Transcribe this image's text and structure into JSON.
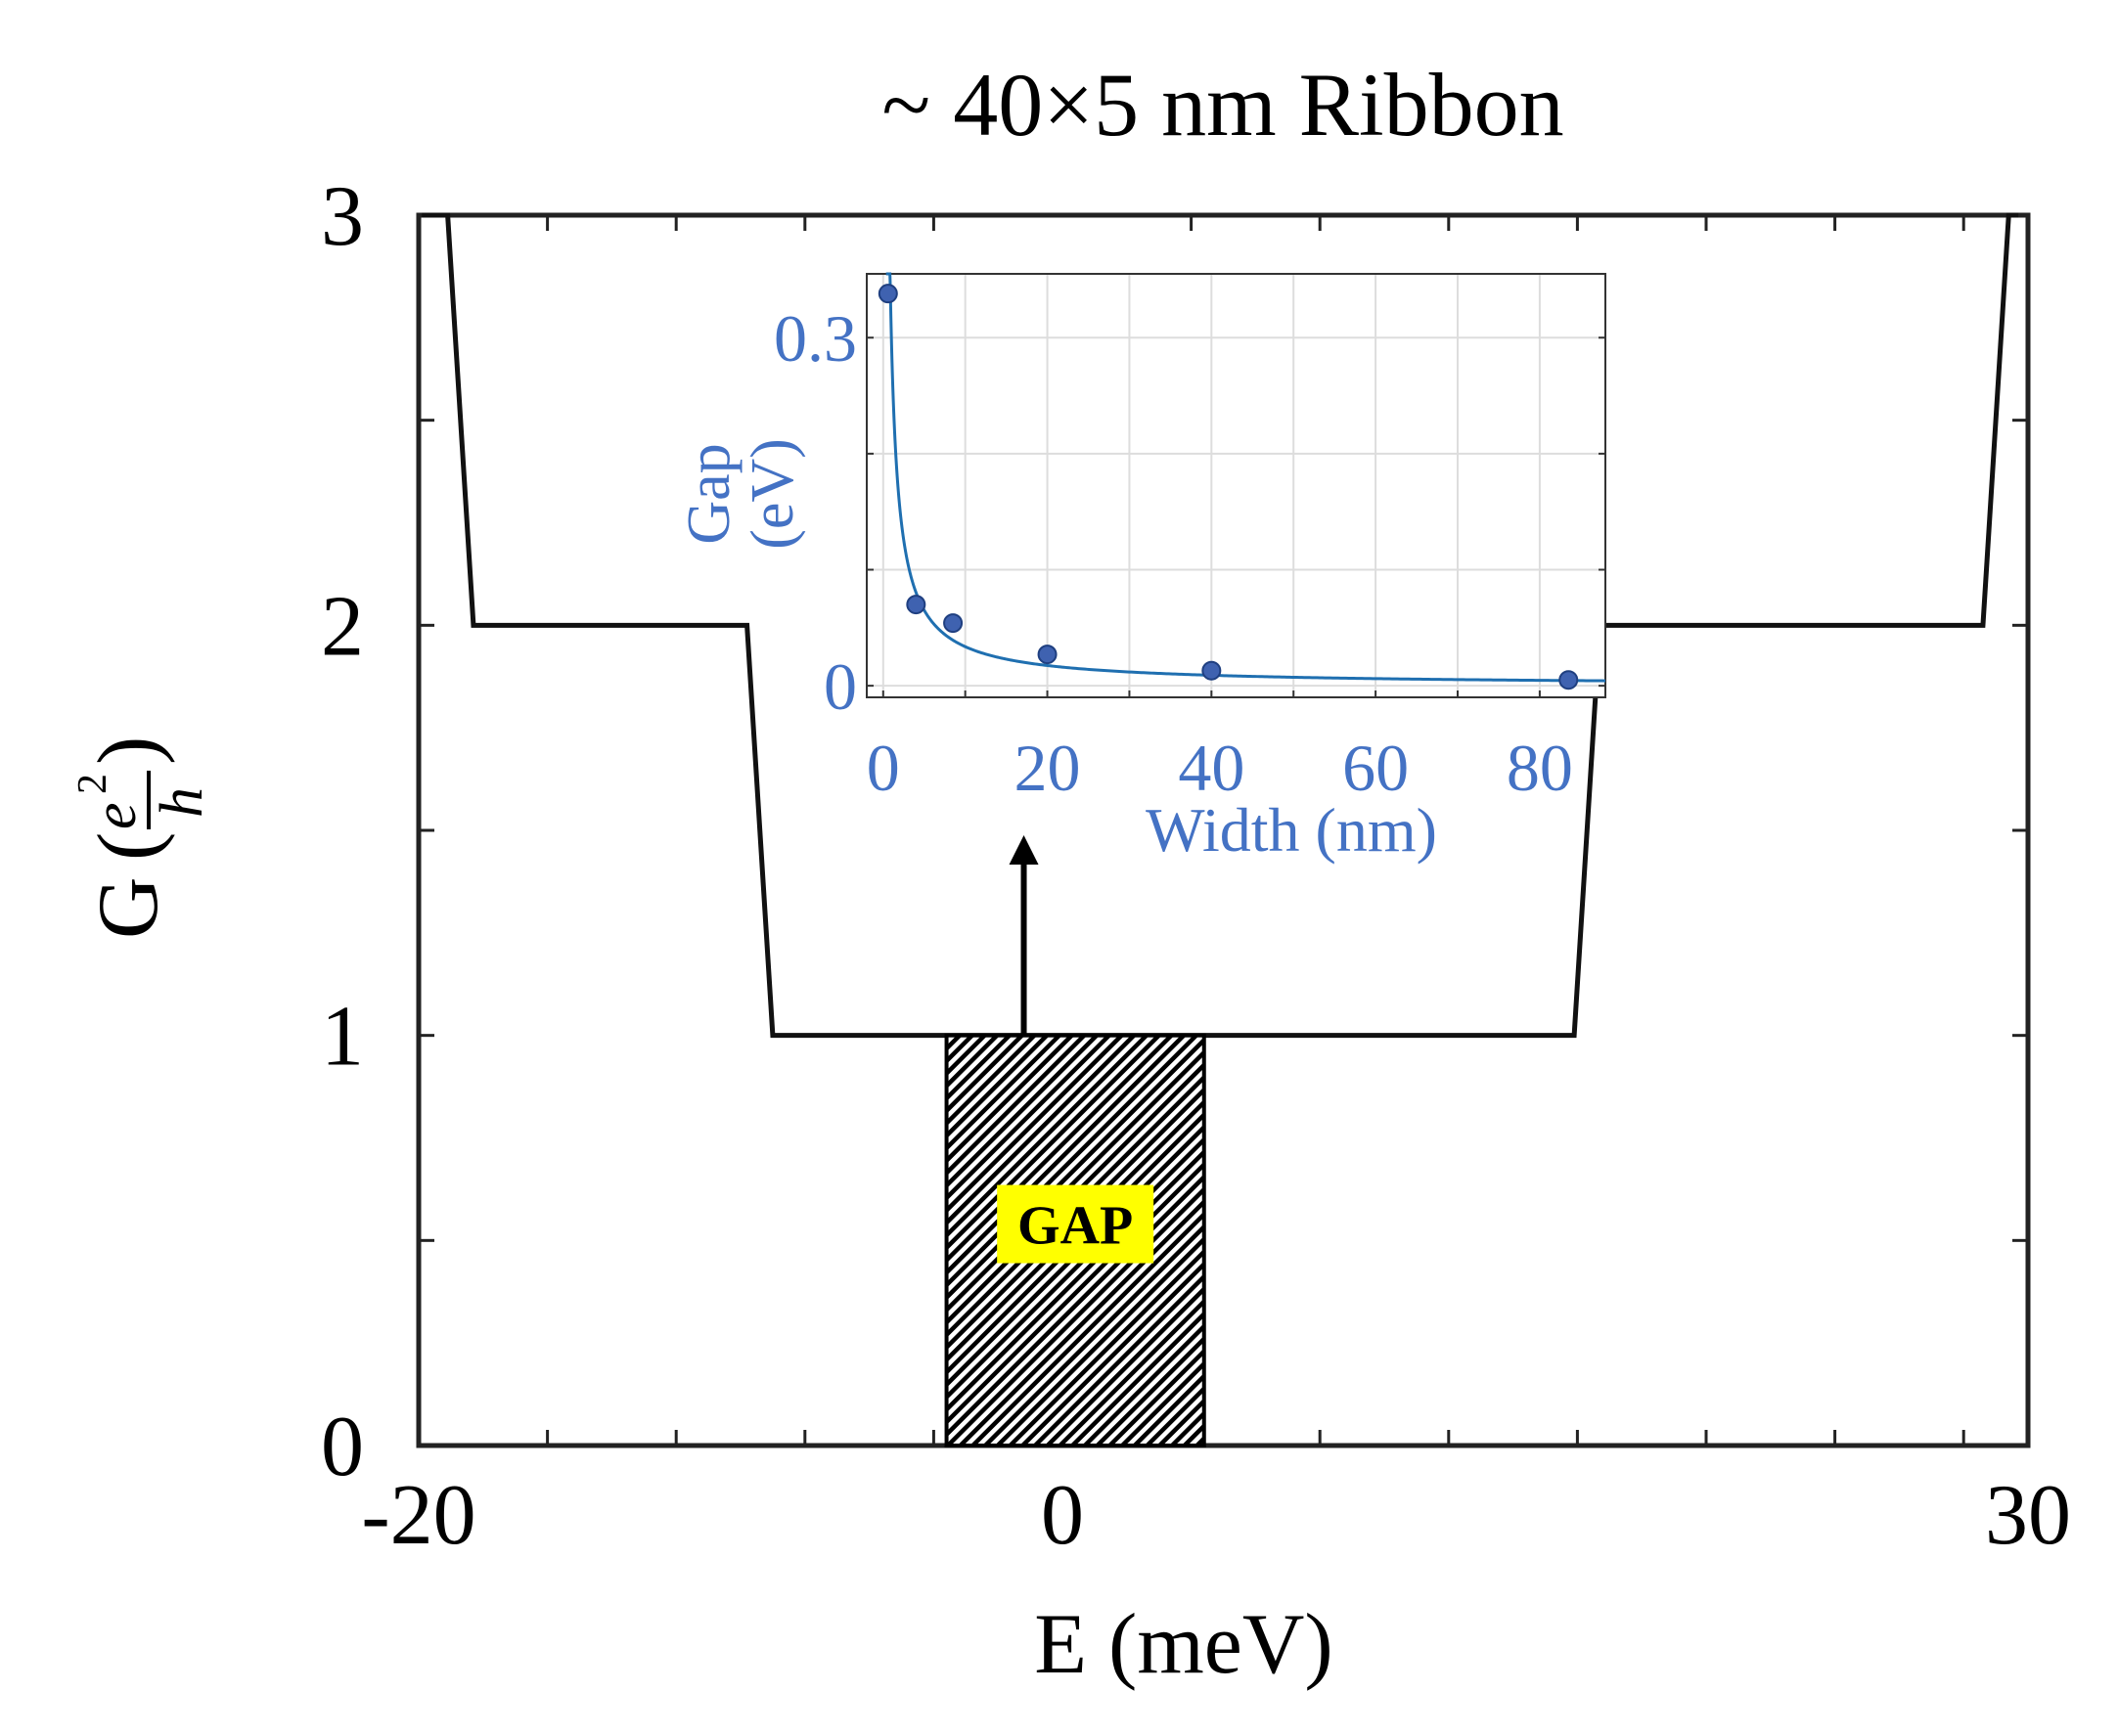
{
  "chart_data": [
    {
      "type": "line",
      "title": "~ 40×5 nm Ribbon",
      "xlabel": "E (meV)",
      "ylabel": "G",
      "ylabel_unit": {
        "numerator": "e",
        "exponent": "2",
        "denominator": "h"
      },
      "xlim": [
        -20,
        30
      ],
      "ylim": [
        0,
        3
      ],
      "x_tick_labels": [
        "-20",
        "0",
        "30"
      ],
      "x_tick_values": [
        -20,
        0,
        30
      ],
      "x_minor_ticks": [
        -16,
        -12,
        -8,
        -4,
        4,
        8,
        12,
        16,
        20,
        24,
        28
      ],
      "y_tick_labels": [
        "0",
        "1",
        "2",
        "3"
      ],
      "y_tick_values": [
        0,
        1,
        2,
        3
      ],
      "y_minor_ticks": [
        0.5,
        1.5,
        2.5
      ],
      "grid": false,
      "series": [
        {
          "values_x": [
            -19.9,
            -19.1,
            -18.3,
            -9.8,
            -9.0,
            15.9,
            16.7,
            28.6,
            29.4,
            29.7
          ],
          "values_y": [
            3,
            3,
            2,
            2,
            1,
            1,
            2,
            2,
            3,
            3
          ]
        }
      ],
      "gap_region": {
        "x_range": [
          -3.6,
          4.4
        ],
        "y_range": [
          0,
          1
        ],
        "label": "GAP",
        "label_bg": "#ffff00",
        "hatch": "diagonal black/white"
      },
      "arrow": {
        "x": -1.2,
        "from_y": 1,
        "to_y": 1.5
      },
      "color": "#111111"
    },
    {
      "type": "scatter",
      "xlabel": "Width (nm)",
      "ylabel": "Gap (eV)",
      "xlim": [
        -2,
        88
      ],
      "ylim": [
        -0.01,
        0.355
      ],
      "x_tick_labels": [
        "0",
        "20",
        "40",
        "60",
        "80"
      ],
      "x_tick_values": [
        0,
        20,
        40,
        60,
        80
      ],
      "y_tick_labels": [
        "0",
        "0.3"
      ],
      "y_tick_values": [
        0,
        0.3
      ],
      "y_grid_lines": [
        0,
        0.1,
        0.2,
        0.3
      ],
      "x_grid_lines": [
        0,
        10,
        20,
        30,
        40,
        50,
        60,
        70,
        80
      ],
      "grid": true,
      "series": [
        {
          "x": [
            0.6,
            4,
            8.5,
            20,
            40,
            83.5
          ],
          "y": [
            0.338,
            0.07,
            0.054,
            0.027,
            0.013,
            0.005
          ]
        }
      ],
      "fit_curve": {
        "form": "a/x^b",
        "a": 0.3,
        "b": 0.95
      },
      "color": "#4472c4",
      "line_color": "#1f6fb0",
      "point_color": "#3f62b0"
    }
  ]
}
